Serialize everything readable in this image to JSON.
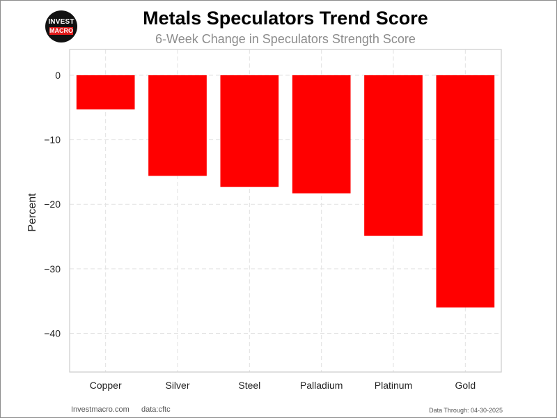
{
  "logo": {
    "line1": "INVEST",
    "line2": "MACRO"
  },
  "chart_data": {
    "type": "bar",
    "title": "Metals Speculators Trend Score",
    "subtitle": "6-Week Change in Speculators Strength Score",
    "xlabel": "",
    "ylabel": "Percent",
    "categories": [
      "Copper",
      "Silver",
      "Steel",
      "Palladium",
      "Platinum",
      "Gold"
    ],
    "values": [
      -5.3,
      -15.6,
      -17.3,
      -18.3,
      -24.9,
      -36.0
    ],
    "ylim": [
      -46,
      4
    ],
    "yticks": [
      0,
      -10,
      -20,
      -30,
      -40
    ],
    "ytick_labels": [
      "0",
      "−10",
      "−20",
      "−30",
      "−40"
    ],
    "bar_color": "#ff0000",
    "grid": true
  },
  "footer": {
    "source_site": "Investmacro.com",
    "data_source": "data:cftc",
    "data_through": "Data Through: 04-30-2025"
  }
}
